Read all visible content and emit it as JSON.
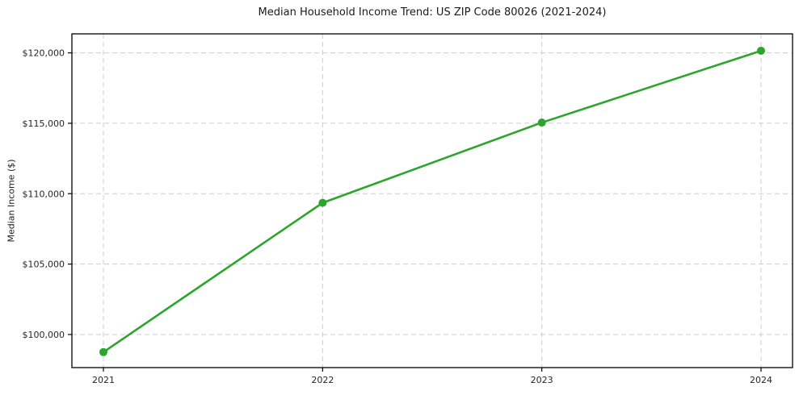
{
  "chart_data": {
    "type": "line",
    "title": "Median Household Income Trend: US ZIP Code 80026 (2021-2024)",
    "xlabel": "",
    "ylabel": "Median Income ($)",
    "categories": [
      "2021",
      "2022",
      "2023",
      "2024"
    ],
    "series": [
      {
        "name": "Median Household Income",
        "values": [
          98750,
          109350,
          115050,
          120150
        ],
        "color": "#2ca52c",
        "marker": "circle"
      }
    ],
    "ylim": [
      97650,
      121350
    ],
    "yticks": [
      100000,
      105000,
      110000,
      115000,
      120000
    ],
    "ytick_labels": [
      "$100,000",
      "$105,000",
      "$110,000",
      "$115,000",
      "$120,000"
    ],
    "xtick_labels": [
      "2021",
      "2022",
      "2023",
      "2024"
    ],
    "grid": "both, dashed",
    "legend": "none",
    "colors": {
      "line": "#2ca52c",
      "grid": "#cccccc",
      "axis_border": "#000000",
      "text": "#262626",
      "background": "#ffffff"
    }
  }
}
